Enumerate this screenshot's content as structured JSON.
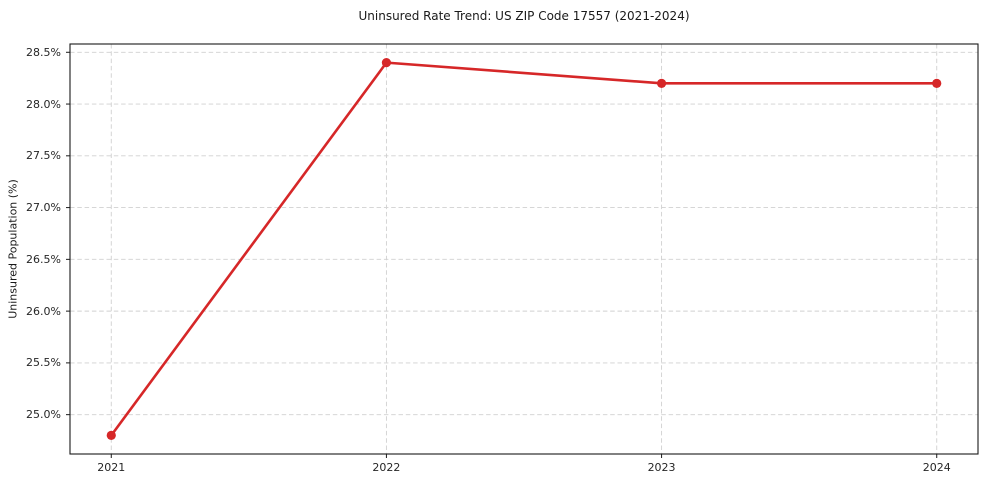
{
  "chart_data": {
    "type": "line",
    "title": "Uninsured Rate Trend: US ZIP Code 17557 (2021-2024)",
    "xlabel": "",
    "ylabel": "Uninsured Population (%)",
    "x": [
      2021,
      2022,
      2023,
      2024
    ],
    "x_tick_labels": [
      "2021",
      "2022",
      "2023",
      "2024"
    ],
    "series": [
      {
        "name": "Uninsured Rate",
        "values": [
          24.8,
          28.4,
          28.2,
          28.2
        ]
      }
    ],
    "y_ticks": [
      25.0,
      25.5,
      26.0,
      26.5,
      27.0,
      27.5,
      28.0,
      28.5
    ],
    "y_tick_labels": [
      "25.0%",
      "25.5%",
      "26.0%",
      "26.5%",
      "27.0%",
      "27.5%",
      "28.0%",
      "28.5%"
    ],
    "xlim": [
      2020.85,
      2024.15
    ],
    "ylim": [
      24.62,
      28.58
    ],
    "grid": true,
    "legend_position": "none",
    "colors": {
      "line": "#d62728",
      "marker": "#d62728",
      "grid": "#d0d0d0",
      "spine": "#1a1a1a",
      "tick_text": "#262626",
      "background": "#ffffff"
    }
  }
}
